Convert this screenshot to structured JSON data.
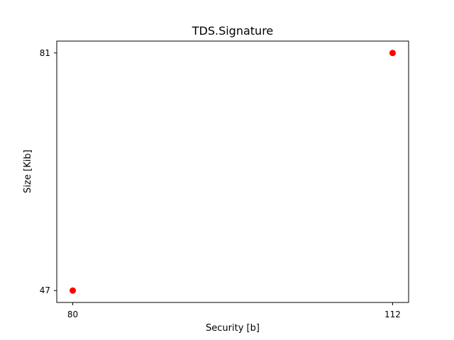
{
  "chart_data": {
    "type": "scatter",
    "title": "TDS.Signature",
    "xlabel": "Security [b]",
    "ylabel": "Size [Kib]",
    "x": [
      80,
      112
    ],
    "y": [
      47,
      81
    ],
    "xticks": [
      80,
      112
    ],
    "yticks": [
      47,
      81
    ],
    "xlim": [
      78.4,
      113.6
    ],
    "ylim": [
      45.3,
      82.7
    ],
    "grid": false,
    "marker_color": "#ff0000"
  }
}
